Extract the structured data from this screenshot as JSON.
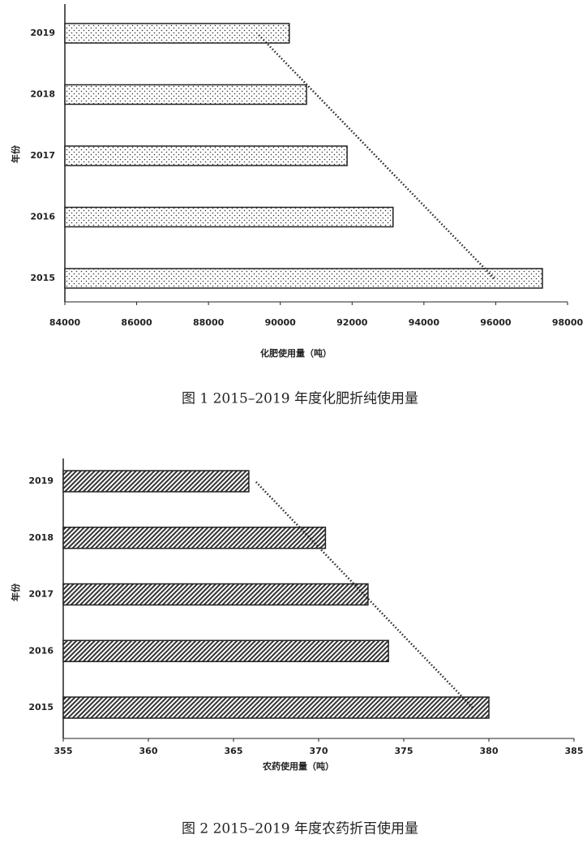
{
  "chart_data": [
    {
      "type": "bar",
      "orientation": "horizontal",
      "title": "图 1 2015–2019 年度化肥折纯使用量",
      "x_label": "化肥使用量（吨）",
      "y_label": "年份",
      "categories": [
        "2015",
        "2016",
        "2017",
        "2018",
        "2019"
      ],
      "values": [
        97300,
        93140,
        91860,
        90730,
        90250
      ],
      "xlim": [
        84000,
        98000
      ],
      "xticks": [
        84000,
        86000,
        88000,
        90000,
        92000,
        94000,
        96000,
        98000
      ],
      "pattern": "dots",
      "color": "#222222",
      "trendline": true
    },
    {
      "type": "bar",
      "orientation": "horizontal",
      "title": "图 2  2015–2019 年度农药折百使用量",
      "x_label": "农药使用量（吨）",
      "y_label": "年份",
      "categories": [
        "2015",
        "2016",
        "2017",
        "2018",
        "2019"
      ],
      "values": [
        380,
        374.1,
        372.9,
        370.4,
        365.9
      ],
      "xlim": [
        355,
        385
      ],
      "xticks": [
        355,
        360,
        365,
        370,
        375,
        380,
        385
      ],
      "pattern": "hatch",
      "color": "#222222",
      "trendline": true
    }
  ]
}
